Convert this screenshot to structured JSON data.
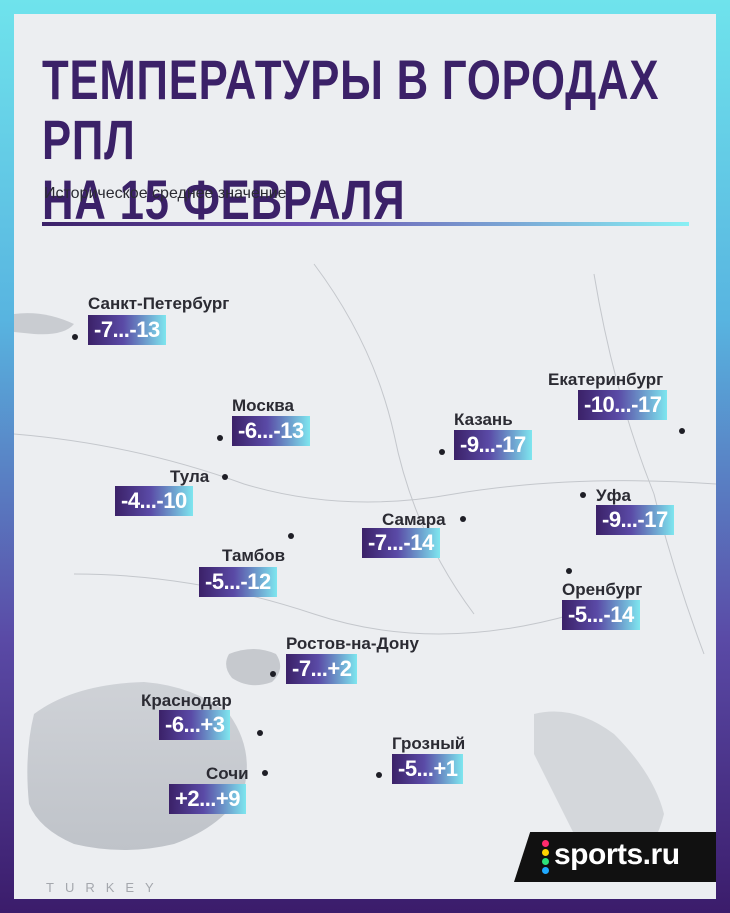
{
  "header": {
    "title_line1": "ТЕМПЕРАТУРЫ В ГОРОДАХ РПЛ",
    "title_line2": "НА 15 ФЕВРАЛЯ",
    "subtitle": "Историческое среднее значение"
  },
  "cities": [
    {
      "name": "Санкт-Петербург",
      "temp": "-7...-13"
    },
    {
      "name": "Москва",
      "temp": "-6...-13"
    },
    {
      "name": "Тула",
      "temp": "-4...-10"
    },
    {
      "name": "Тамбов",
      "temp": "-5...-12"
    },
    {
      "name": "Казань",
      "temp": "-9...-17"
    },
    {
      "name": "Екатеринбург",
      "temp": "-10...-17"
    },
    {
      "name": "Уфа",
      "temp": "-9...-17"
    },
    {
      "name": "Самара",
      "temp": "-7...-14"
    },
    {
      "name": "Оренбург",
      "temp": "-5...-14"
    },
    {
      "name": "Ростов-на-Дону",
      "temp": "-7...+2"
    },
    {
      "name": "Краснодар",
      "temp": "-6...+3"
    },
    {
      "name": "Грозный",
      "temp": "-5...+1"
    },
    {
      "name": "Сочи",
      "temp": "+2...+9"
    }
  ],
  "map_label": "TURKEY",
  "logo": {
    "text": "sports.ru",
    "dot_colors": [
      "#ff2a6d",
      "#ffd400",
      "#2de17a",
      "#1fa9ff"
    ]
  },
  "colors": {
    "title": "#3b2168",
    "label_start": "#3b2168",
    "label_end": "#7ee6ef"
  }
}
